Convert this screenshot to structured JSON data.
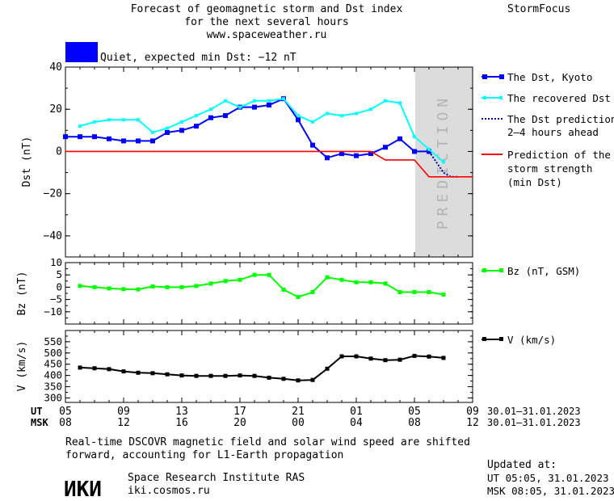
{
  "header": {
    "title_line1": "Forecast of geomagnetic storm and Dst index",
    "title_line2": "for the next several hours",
    "url": "www.spaceweather.ru",
    "brand": "StormFocus",
    "status_text": "Quiet, expected min Dst: −12 nT",
    "status_color": "#0000ff"
  },
  "prediction_band_label": "PREDICTION",
  "legend": {
    "dst_kyoto": "The Dst, Kyoto",
    "dst_recovered": "The recovered Dst",
    "dst_pred_line1": "The Dst prediction",
    "dst_pred_line2": "2–4 hours ahead",
    "storm_line1": "Prediction of the",
    "storm_line2": "storm strength",
    "storm_line3": "(min Dst)",
    "bz": "Bz (nT, GSM)",
    "v": "V (km/s)"
  },
  "time_axis": {
    "ut_label": "UT",
    "msk_label": "MSK",
    "ut_ticks": [
      "05",
      "09",
      "13",
      "17",
      "21",
      "01",
      "05",
      "09"
    ],
    "msk_ticks": [
      "08",
      "12",
      "16",
      "20",
      "00",
      "04",
      "08",
      "12"
    ],
    "ut_range": "30.01–31.01.2023",
    "msk_range": "30.01–31.01.2023"
  },
  "footer": {
    "note_line1": "Real-time DSCOVR magnetic field and solar wind speed are shifted",
    "note_line2": "forward, accounting for L1-Earth propagation",
    "logo_text": "ИКИ",
    "institute": "Space Research Institute RAS",
    "site": "iki.cosmos.ru",
    "updated_label": "Updated at:",
    "updated_ut": "UT   05:05, 31.01.2023",
    "updated_msk": "MSK 08:05, 31.01.2023"
  },
  "colors": {
    "dst_kyoto": "#0000ff",
    "dst_recovered": "#00ffff",
    "dst_prediction": "#0000aa",
    "storm": "#ff0000",
    "bz": "#00ff00",
    "v": "#000000",
    "prediction_band": "#dcdcdc"
  },
  "chart_data": [
    {
      "type": "line",
      "ylabel": "Dst (nT)",
      "ylim": [
        -50,
        40
      ],
      "yticks": [
        40,
        20,
        0,
        -20,
        -40
      ],
      "xlim": [
        5,
        33
      ],
      "prediction_band": [
        30,
        33
      ],
      "series": [
        {
          "name": "The Dst, Kyoto",
          "x": [
            5,
            6,
            7,
            8,
            9,
            10,
            11,
            12,
            13,
            14,
            15,
            16,
            17,
            18,
            19,
            20,
            21,
            22,
            23,
            24,
            25,
            26,
            27,
            28,
            29,
            30
          ],
          "y": [
            7,
            7,
            7,
            6,
            5,
            5,
            5,
            9,
            10,
            12,
            16,
            17,
            21,
            21,
            22,
            25,
            15,
            3,
            -3,
            -1,
            -2,
            -1,
            2,
            6,
            0,
            0
          ]
        },
        {
          "name": "The recovered Dst",
          "x": [
            6,
            7,
            8,
            9,
            10,
            11,
            12,
            13,
            14,
            15,
            16,
            17,
            18,
            19,
            20,
            21,
            22,
            23,
            24,
            25,
            26,
            27,
            28,
            29,
            30,
            31
          ],
          "y": [
            12,
            14,
            15,
            15,
            15,
            9,
            11,
            14,
            17,
            20,
            24,
            21,
            24,
            24,
            25,
            17,
            14,
            18,
            17,
            18,
            20,
            24,
            23,
            7,
            1,
            -5
          ]
        },
        {
          "name": "The Dst prediction 2–4 hours ahead",
          "x": [
            30,
            30.5,
            31,
            31.5,
            32
          ],
          "y": [
            0,
            -5,
            -10,
            -12,
            -12
          ]
        },
        {
          "name": "Prediction of the storm strength (min Dst)",
          "x": [
            5,
            26,
            27,
            29,
            30,
            33
          ],
          "y": [
            0,
            0,
            -4,
            -4,
            -12,
            -12
          ]
        }
      ]
    },
    {
      "type": "line",
      "ylabel": "Bz (nT)",
      "ylim": [
        -15,
        10
      ],
      "yticks": [
        10,
        5,
        0,
        -5,
        -10
      ],
      "xlim": [
        5,
        33
      ],
      "series": [
        {
          "name": "Bz (nT, GSM)",
          "x": [
            6,
            7,
            8,
            9,
            10,
            11,
            12,
            13,
            14,
            15,
            16,
            17,
            18,
            19,
            20,
            21,
            22,
            23,
            24,
            25,
            26,
            27,
            28,
            29,
            30,
            31
          ],
          "y": [
            0.5,
            0,
            -0.5,
            -0.8,
            -0.9,
            0.3,
            0,
            0,
            0.5,
            1.5,
            2.5,
            3,
            5,
            5,
            -1,
            -4,
            -2,
            4,
            3,
            2,
            2,
            1.5,
            -2,
            -2,
            -2,
            -3
          ]
        }
      ]
    },
    {
      "type": "line",
      "ylabel": "V (km/s)",
      "ylim": [
        280,
        600
      ],
      "yticks": [
        550,
        500,
        450,
        400,
        350,
        300
      ],
      "xlim": [
        5,
        33
      ],
      "series": [
        {
          "name": "V (km/s)",
          "x": [
            6,
            7,
            8,
            9,
            10,
            11,
            12,
            13,
            14,
            15,
            16,
            17,
            18,
            19,
            20,
            21,
            22,
            23,
            24,
            25,
            26,
            27,
            28,
            29,
            30,
            31
          ],
          "y": [
            435,
            432,
            428,
            418,
            412,
            410,
            405,
            400,
            398,
            398,
            398,
            400,
            398,
            390,
            385,
            378,
            380,
            430,
            485,
            485,
            475,
            468,
            470,
            487,
            484,
            478
          ]
        }
      ]
    }
  ]
}
